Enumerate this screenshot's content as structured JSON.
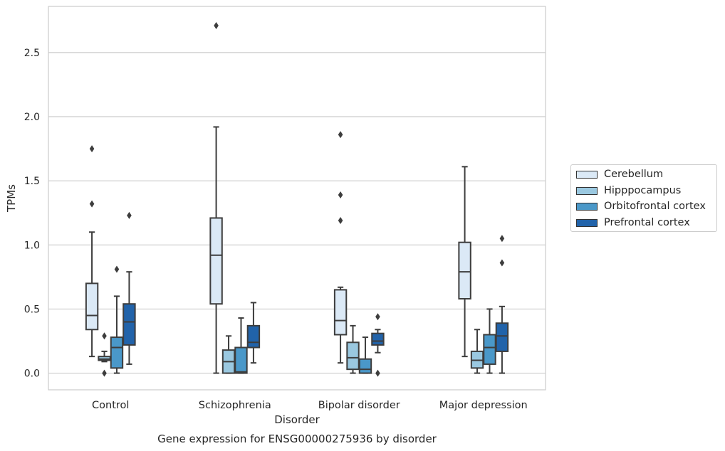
{
  "chart_data": {
    "type": "box",
    "title": "Gene expression for ENSG00000275936 by disorder",
    "xlabel": "Disorder",
    "ylabel": "TPMs",
    "ylim": [
      -0.13,
      2.86
    ],
    "yticks": [
      "0.0",
      "0.5",
      "1.0",
      "1.5",
      "2.0",
      "2.5"
    ],
    "categories": [
      "Control",
      "Schizophrenia",
      "Bipolar disorder",
      "Major depression"
    ],
    "grid": "horizontal",
    "legend_position": "right",
    "series": [
      {
        "name": "Cerebellum",
        "color": "#dbe9f6",
        "boxes": [
          {
            "whisker_low": 0.13,
            "q1": 0.34,
            "median": 0.45,
            "q3": 0.7,
            "whisker_high": 1.1,
            "outliers": [
              1.32,
              1.75
            ]
          },
          {
            "whisker_low": 0.0,
            "q1": 0.54,
            "median": 0.92,
            "q3": 1.21,
            "whisker_high": 1.92,
            "outliers": [
              2.71
            ]
          },
          {
            "whisker_low": 0.08,
            "q1": 0.3,
            "median": 0.41,
            "q3": 0.65,
            "whisker_high": 0.67,
            "outliers": [
              1.19,
              1.39,
              1.86
            ]
          },
          {
            "whisker_low": 0.13,
            "q1": 0.58,
            "median": 0.79,
            "q3": 1.02,
            "whisker_high": 1.61,
            "outliers": []
          }
        ]
      },
      {
        "name": "Hipppocampus",
        "color": "#9ac8e0",
        "boxes": [
          {
            "whisker_low": 0.09,
            "q1": 0.1,
            "median": 0.11,
            "q3": 0.13,
            "whisker_high": 0.17,
            "outliers": [
              0.0,
              0.29
            ]
          },
          {
            "whisker_low": 0.0,
            "q1": 0.0,
            "median": 0.09,
            "q3": 0.18,
            "whisker_high": 0.29,
            "outliers": []
          },
          {
            "whisker_low": 0.0,
            "q1": 0.03,
            "median": 0.12,
            "q3": 0.24,
            "whisker_high": 0.37,
            "outliers": []
          },
          {
            "whisker_low": 0.0,
            "q1": 0.04,
            "median": 0.1,
            "q3": 0.17,
            "whisker_high": 0.34,
            "outliers": []
          }
        ]
      },
      {
        "name": "Orbitofrontal cortex",
        "color": "#4a98c9",
        "boxes": [
          {
            "whisker_low": 0.0,
            "q1": 0.04,
            "median": 0.2,
            "q3": 0.28,
            "whisker_high": 0.6,
            "outliers": [
              0.81
            ]
          },
          {
            "whisker_low": 0.0,
            "q1": 0.0,
            "median": 0.01,
            "q3": 0.2,
            "whisker_high": 0.43,
            "outliers": []
          },
          {
            "whisker_low": 0.0,
            "q1": 0.0,
            "median": 0.03,
            "q3": 0.11,
            "whisker_high": 0.28,
            "outliers": []
          },
          {
            "whisker_low": 0.0,
            "q1": 0.07,
            "median": 0.2,
            "q3": 0.3,
            "whisker_high": 0.5,
            "outliers": []
          }
        ]
      },
      {
        "name": "Prefrontal cortex",
        "color": "#2163aa",
        "boxes": [
          {
            "whisker_low": 0.07,
            "q1": 0.22,
            "median": 0.4,
            "q3": 0.54,
            "whisker_high": 0.79,
            "outliers": [
              1.23
            ]
          },
          {
            "whisker_low": 0.08,
            "q1": 0.2,
            "median": 0.24,
            "q3": 0.37,
            "whisker_high": 0.55,
            "outliers": []
          },
          {
            "whisker_low": 0.16,
            "q1": 0.22,
            "median": 0.25,
            "q3": 0.31,
            "whisker_high": 0.34,
            "outliers": [
              0.0,
              0.44
            ]
          },
          {
            "whisker_low": 0.0,
            "q1": 0.17,
            "median": 0.29,
            "q3": 0.39,
            "whisker_high": 0.52,
            "outliers": [
              0.86,
              1.05
            ]
          }
        ]
      }
    ]
  }
}
